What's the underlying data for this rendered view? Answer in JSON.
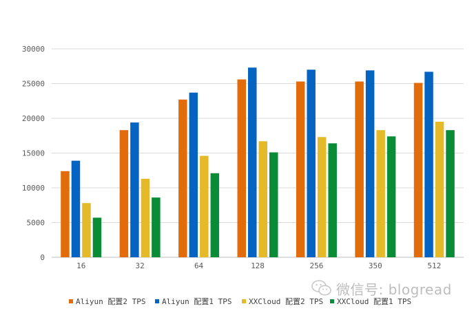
{
  "chart_data": {
    "type": "bar",
    "categories": [
      "16",
      "32",
      "64",
      "128",
      "256",
      "350",
      "512"
    ],
    "series": [
      {
        "name": "Aliyun 配置2 TPS",
        "color": "#e36c0a",
        "values": [
          12400,
          18300,
          22700,
          25600,
          25300,
          25300,
          25100
        ]
      },
      {
        "name": "Aliyun 配置1 TPS",
        "color": "#0563c1",
        "values": [
          13900,
          19400,
          23700,
          27300,
          27000,
          26900,
          26700
        ]
      },
      {
        "name": "XXCloud 配置2 TPS",
        "color": "#e4b92a",
        "values": [
          7800,
          11300,
          14600,
          16700,
          17300,
          18300,
          19500
        ]
      },
      {
        "name": "XXCloud 配置1 TPS",
        "color": "#0a8c37",
        "values": [
          5700,
          8600,
          12100,
          15100,
          16400,
          17400,
          18300
        ]
      }
    ],
    "yticks": [
      "0",
      "5000",
      "10000",
      "15000",
      "20000",
      "25000",
      "30000"
    ],
    "ylim": [
      0,
      30000
    ],
    "grid": true,
    "legend_position": "bottom"
  },
  "watermark": {
    "text": "微信号: blogread",
    "icon": "wechat-icon"
  }
}
